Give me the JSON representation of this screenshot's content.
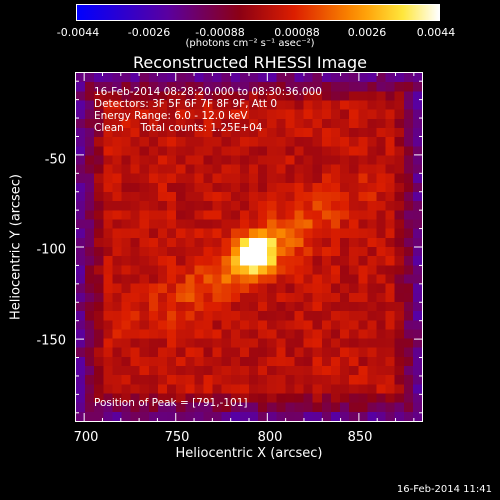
{
  "colorbar": {
    "ticks": [
      "-0.0044",
      "-0.0026",
      "-0.00088",
      "0.00088",
      "0.0026",
      "0.0044"
    ],
    "units": "(photons cm⁻² s⁻¹ asec⁻²)",
    "min": -0.0044,
    "max": 0.0044
  },
  "chart_data": {
    "type": "heatmap",
    "title": "Reconstructed RHESSI Image",
    "xlabel": "Heliocentric X (arcsec)",
    "ylabel": "Heliocentric Y (arcsec)",
    "xlim": [
      695,
      885
    ],
    "ylim": [
      -195,
      -5
    ],
    "x_ticks": [
      700,
      750,
      800,
      850
    ],
    "y_ticks": [
      -50,
      -100,
      -150
    ],
    "peak": {
      "x": 791,
      "y": -101
    }
  },
  "info": {
    "line1": "16-Feb-2014 08:28:20.000 to 08:30:36.000",
    "line2": "Detectors: 3F 5F 6F 7F 8F 9F, Att 0",
    "line3": "Energy Range: 6.0 - 12.0 keV",
    "line4": "Clean     Total counts: 1.25E+04"
  },
  "peak_text": "Position of Peak = [791,-101]",
  "timestamp": "16-Feb-2014 11:41"
}
